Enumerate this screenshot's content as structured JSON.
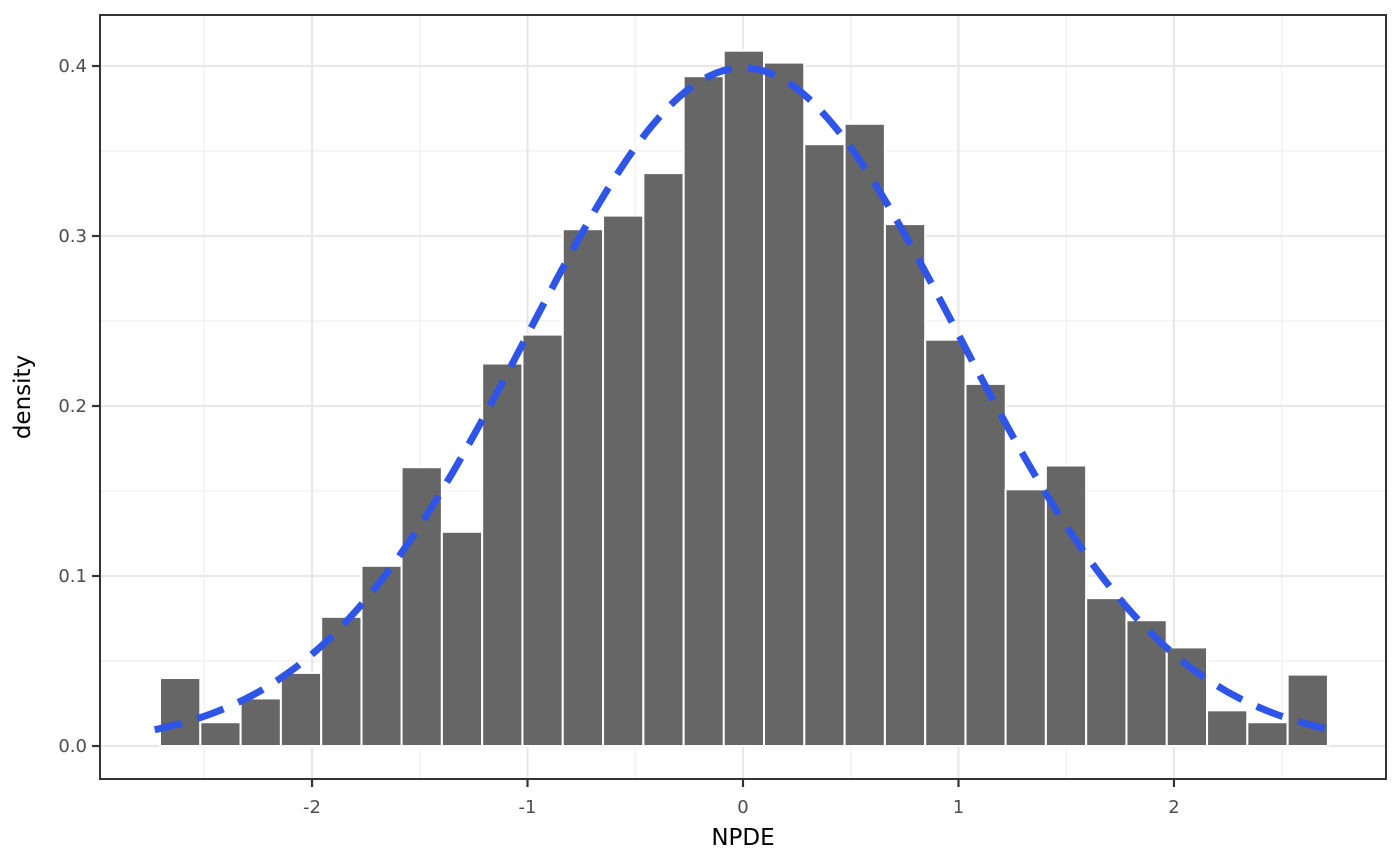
{
  "chart_data": {
    "type": "bar",
    "subtype": "histogram-with-normal-density-overlay",
    "title": "",
    "xlabel": "NPDE",
    "ylabel": "density",
    "xlim": [
      -2.984,
      2.984
    ],
    "ylim": [
      -0.0194,
      0.43
    ],
    "grid": true,
    "legend": "none",
    "x_axis": {
      "major_tick_values": [
        -2,
        -1,
        0,
        1,
        2
      ],
      "major_tick_labels": [
        "-2",
        "-1",
        "0",
        "1",
        "2"
      ],
      "minor_tick_values": [
        -2.5,
        -1.5,
        -0.5,
        0.5,
        1.5,
        2.5
      ]
    },
    "y_axis": {
      "major_tick_values": [
        0.0,
        0.1,
        0.2,
        0.3,
        0.4
      ],
      "major_tick_labels": [
        "0.0",
        "0.1",
        "0.2",
        "0.3",
        "0.4"
      ],
      "minor_tick_values": [
        0.05,
        0.15,
        0.25,
        0.35
      ]
    },
    "bin_width": 0.1869,
    "bar_centers": [
      -2.612,
      -2.425,
      -2.238,
      -2.051,
      -1.864,
      -1.677,
      -1.491,
      -1.304,
      -1.117,
      -0.93,
      -0.743,
      -0.556,
      -0.369,
      -0.182,
      0.004,
      0.191,
      0.378,
      0.565,
      0.752,
      0.939,
      1.126,
      1.312,
      1.499,
      1.686,
      1.873,
      2.06,
      2.247,
      2.434,
      2.621
    ],
    "bar_densities": [
      0.04,
      0.014,
      0.028,
      0.043,
      0.076,
      0.106,
      0.164,
      0.126,
      0.225,
      0.242,
      0.304,
      0.312,
      0.337,
      0.394,
      0.409,
      0.402,
      0.354,
      0.366,
      0.307,
      0.239,
      0.213,
      0.151,
      0.165,
      0.087,
      0.074,
      0.058,
      0.021,
      0.014,
      0.042
    ],
    "overlay_curve": {
      "name": "standard-normal-pdf",
      "mean": 0,
      "sd": 1,
      "x_start": -2.73,
      "x_end": 2.73,
      "line_style": "dashed"
    }
  },
  "colors": {
    "background": "#FFFFFF",
    "panel_background": "#FFFFFF",
    "bar_fill": "#666666",
    "bar_stroke": "#FFFFFF",
    "curve": "#2E55E8",
    "grid_major": "#E8E8E8",
    "grid_minor": "#F3F3F3",
    "panel_border": "#333333",
    "tick_mark": "#333333",
    "tick_label": "#4D4D4D",
    "axis_title": "#000000"
  }
}
